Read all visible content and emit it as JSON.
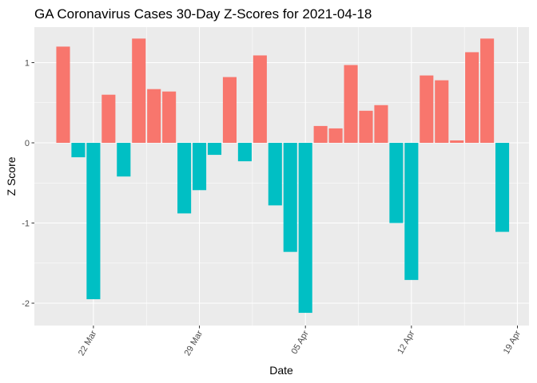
{
  "chart_data": {
    "type": "bar",
    "title": "GA Coronavirus Cases 30-Day Z-Scores for 2021-04-18",
    "xlabel": "Date",
    "ylabel": "Z Score",
    "ylim": [
      -2.2,
      1.42
    ],
    "y_ticks": [
      -2,
      -1,
      0,
      1
    ],
    "y_tick_labels": [
      "-2",
      "-1",
      "0",
      "1"
    ],
    "x_ticks": [
      {
        "label": "22 Mar",
        "date": "2021-03-22"
      },
      {
        "label": "29 Mar",
        "date": "2021-03-29"
      },
      {
        "label": "05 Apr",
        "date": "2021-04-05"
      },
      {
        "label": "12 Apr",
        "date": "2021-04-12"
      },
      {
        "label": "19 Apr",
        "date": "2021-04-19"
      }
    ],
    "start_date": "2021-03-20",
    "colors": {
      "positive": "#F8766D",
      "negative": "#00BFC4"
    },
    "grid": true,
    "legend": "none",
    "values": [
      1.2,
      -0.18,
      -1.95,
      0.6,
      -0.42,
      1.3,
      0.67,
      0.64,
      -0.88,
      -0.59,
      -0.15,
      0.82,
      -0.23,
      1.09,
      -0.78,
      -1.36,
      -2.12,
      0.21,
      0.18,
      0.97,
      0.4,
      0.47,
      -1.0,
      -1.71,
      0.84,
      0.78,
      0.03,
      1.13,
      1.3,
      -1.11
    ]
  }
}
